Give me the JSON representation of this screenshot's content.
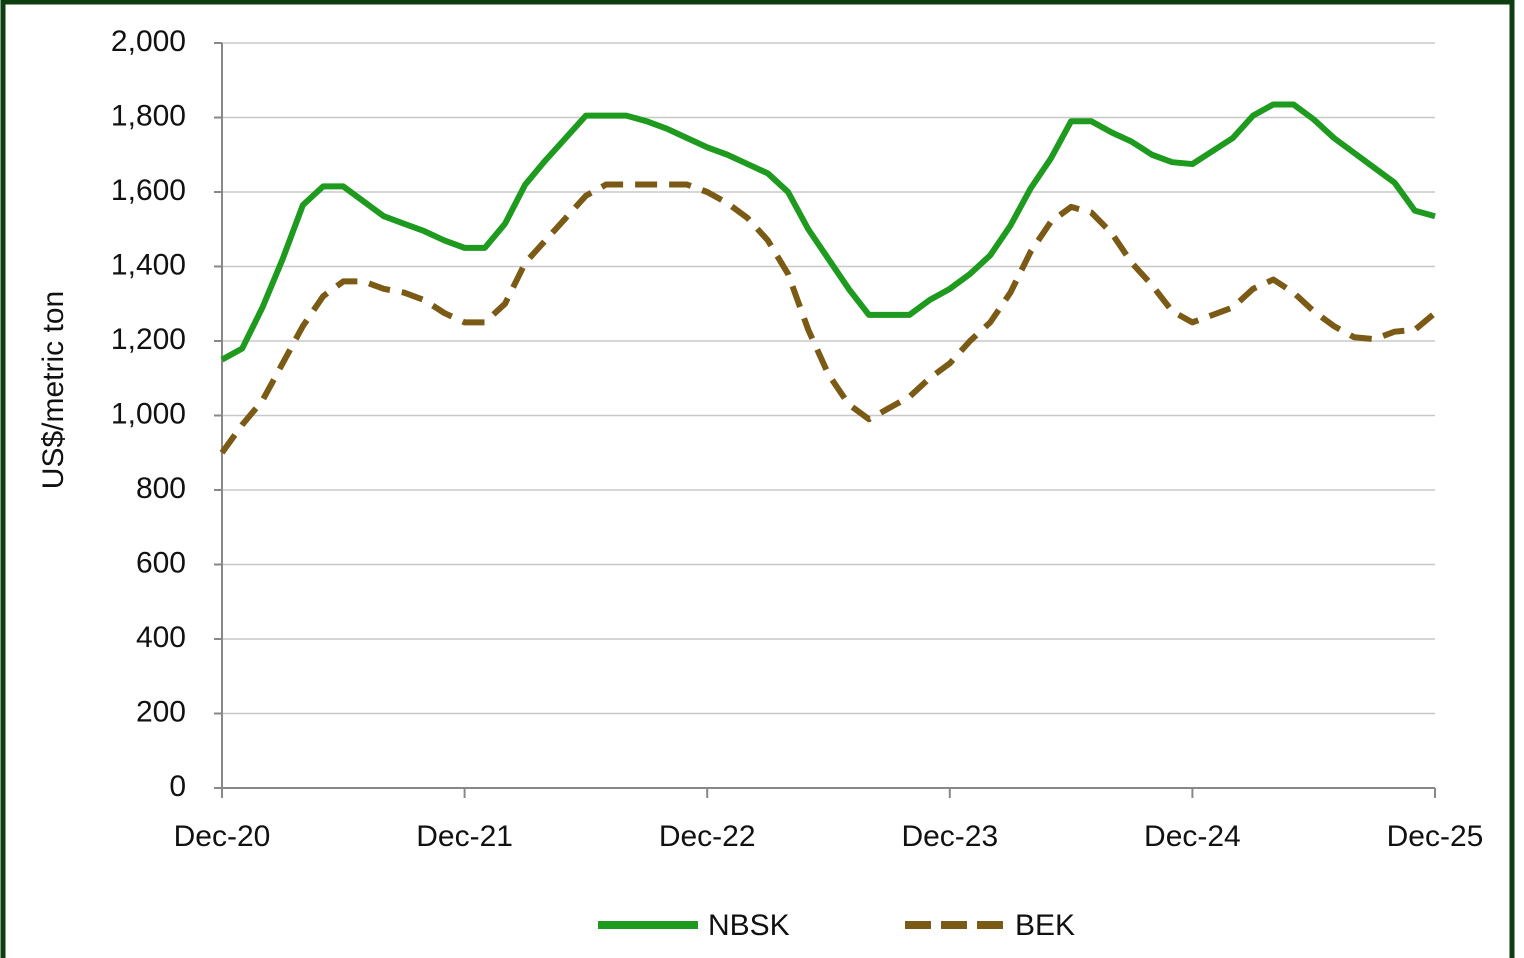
{
  "chart_data": {
    "type": "line",
    "y_label": "US$/metric ton",
    "categories": [
      "Dec-20",
      null,
      null,
      null,
      null,
      null,
      null,
      null,
      null,
      null,
      null,
      null,
      "Dec-21",
      null,
      null,
      null,
      null,
      null,
      null,
      null,
      null,
      null,
      null,
      null,
      "Dec-22",
      null,
      null,
      null,
      null,
      null,
      null,
      null,
      null,
      null,
      null,
      null,
      "Dec-23",
      null,
      null,
      null,
      null,
      null,
      null,
      null,
      null,
      null,
      null,
      null,
      "Dec-24",
      null,
      null,
      null,
      null,
      null,
      null,
      null,
      null,
      null,
      null,
      null,
      "Dec-25"
    ],
    "series": [
      {
        "name": "NBSK",
        "color": "#1e9a1e",
        "dashed": false,
        "values": [
          1150,
          1180,
          1290,
          1420,
          1565,
          1615,
          1615,
          1575,
          1535,
          1515,
          1495,
          1470,
          1450,
          1450,
          1515,
          1620,
          1685,
          1745,
          1805,
          1805,
          1805,
          1790,
          1770,
          1745,
          1720,
          1700,
          1675,
          1650,
          1600,
          1500,
          1420,
          1340,
          1270,
          1270,
          1270,
          1310,
          1340,
          1380,
          1430,
          1510,
          1610,
          1690,
          1790,
          1790,
          1760,
          1735,
          1700,
          1680,
          1675,
          1710,
          1745,
          1805,
          1835,
          1835,
          1795,
          1745,
          1705,
          1665,
          1625,
          1550,
          1535
        ]
      },
      {
        "name": "BEK",
        "color": "#7a5a14",
        "dashed": true,
        "values": [
          900,
          975,
          1040,
          1140,
          1240,
          1320,
          1360,
          1360,
          1340,
          1330,
          1310,
          1275,
          1250,
          1250,
          1300,
          1410,
          1470,
          1530,
          1590,
          1620,
          1620,
          1620,
          1620,
          1620,
          1600,
          1570,
          1530,
          1470,
          1380,
          1230,
          1110,
          1030,
          990,
          1020,
          1050,
          1100,
          1140,
          1200,
          1250,
          1330,
          1440,
          1520,
          1560,
          1545,
          1490,
          1410,
          1350,
          1280,
          1250,
          1270,
          1290,
          1340,
          1365,
          1330,
          1280,
          1240,
          1210,
          1205,
          1225,
          1230,
          1275
        ]
      }
    ],
    "ylim": [
      0,
      2000
    ],
    "yticks": [
      0,
      200,
      400,
      600,
      800,
      {
        "value": 1000,
        "label": "1,000"
      },
      {
        "value": 1200,
        "label": "1,200"
      },
      {
        "value": 1400,
        "label": "1,400"
      },
      {
        "value": 1600,
        "label": "1,600"
      },
      {
        "value": 1800,
        "label": "1,800"
      },
      {
        "value": 2000,
        "label": "2,000"
      }
    ],
    "grid": true,
    "legend": "bottom"
  }
}
